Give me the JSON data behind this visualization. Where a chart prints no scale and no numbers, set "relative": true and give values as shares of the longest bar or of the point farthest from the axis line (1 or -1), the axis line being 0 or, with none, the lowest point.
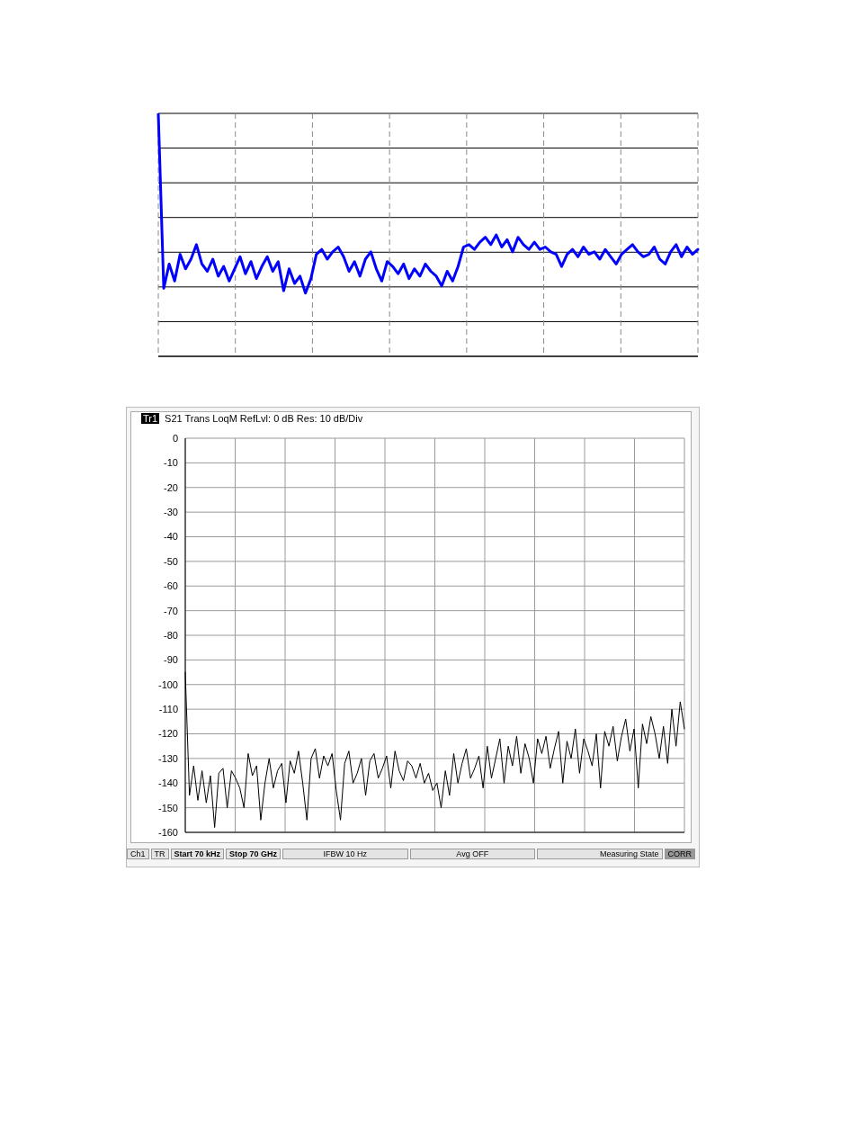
{
  "chart_data": [
    {
      "type": "line",
      "relative": true,
      "grid": true,
      "tick_labels": false,
      "legend": false,
      "categories": [
        null,
        null,
        null,
        null,
        null,
        null,
        null,
        null,
        null,
        null,
        null,
        null,
        null,
        null,
        null,
        null,
        null,
        null,
        null,
        null,
        null,
        null,
        null,
        null,
        null,
        null,
        null,
        null,
        null,
        null,
        null,
        null,
        null,
        null,
        null,
        null,
        null,
        null,
        null,
        null,
        null,
        null,
        null,
        null,
        null,
        null,
        null,
        null,
        null,
        null,
        null,
        null,
        null,
        null,
        null,
        null,
        null,
        null,
        null,
        null,
        null,
        null,
        null,
        null,
        null,
        null,
        null,
        null,
        null,
        null,
        null,
        null,
        null,
        null,
        null,
        null,
        null,
        null,
        null,
        null,
        null,
        null,
        null,
        null,
        null,
        null,
        null,
        null,
        null,
        null,
        null,
        null,
        null,
        null,
        null,
        null,
        null,
        null,
        null,
        null
      ],
      "series": [
        {
          "color": "#0000ff",
          "values": [
            1,
            0.28,
            0.38,
            0.31,
            0.42,
            0.36,
            0.4,
            0.46,
            0.38,
            0.35,
            0.4,
            0.33,
            0.37,
            0.31,
            0.36,
            0.41,
            0.34,
            0.39,
            0.32,
            0.37,
            0.41,
            0.35,
            0.39,
            0.27,
            0.36,
            0.3,
            0.33,
            0.26,
            0.32,
            0.42,
            0.44,
            0.4,
            0.43,
            0.45,
            0.41,
            0.35,
            0.39,
            0.33,
            0.4,
            0.43,
            0.36,
            0.31,
            0.39,
            0.37,
            0.34,
            0.38,
            0.32,
            0.36,
            0.33,
            0.38,
            0.35,
            0.33,
            0.29,
            0.35,
            0.31,
            0.37,
            0.45,
            0.46,
            0.44,
            0.47,
            0.49,
            0.46,
            0.5,
            0.45,
            0.48,
            0.43,
            0.49,
            0.46,
            0.44,
            0.47,
            0.44,
            0.45,
            0.43,
            0.42,
            0.37,
            0.42,
            0.44,
            0.41,
            0.45,
            0.42,
            0.43,
            0.4,
            0.44,
            0.41,
            0.38,
            0.42,
            0.44,
            0.46,
            0.43,
            0.41,
            0.42,
            0.45,
            0.4,
            0.38,
            0.43,
            0.46,
            0.41,
            0.45,
            0.42,
            0.44
          ]
        }
      ]
    },
    {
      "type": "line",
      "title": "S21 Trans LoqM RefLvl: 0  dB Res: 10  dB/Div",
      "grid": true,
      "legend": false,
      "ylim": [
        -160,
        0
      ],
      "yticks": [
        0,
        -10,
        -20,
        -30,
        -40,
        -50,
        -60,
        -70,
        -80,
        -90,
        -100,
        -110,
        -120,
        -130,
        -140,
        -150,
        -160
      ],
      "tick_labels": "y",
      "categories": [
        null,
        null,
        null,
        null,
        null,
        null,
        null,
        null,
        null,
        null,
        null,
        null,
        null,
        null,
        null,
        null,
        null,
        null,
        null,
        null,
        null,
        null,
        null,
        null,
        null,
        null,
        null,
        null,
        null,
        null,
        null,
        null,
        null,
        null,
        null,
        null,
        null,
        null,
        null,
        null,
        null,
        null,
        null,
        null,
        null,
        null,
        null,
        null,
        null,
        null,
        null,
        null,
        null,
        null,
        null,
        null,
        null,
        null,
        null,
        null,
        null,
        null,
        null,
        null,
        null,
        null,
        null,
        null,
        null,
        null,
        null,
        null,
        null,
        null,
        null,
        null,
        null,
        null,
        null,
        null,
        null,
        null,
        null,
        null,
        null,
        null,
        null,
        null,
        null,
        null,
        null,
        null,
        null,
        null,
        null,
        null,
        null,
        null,
        null,
        null,
        null,
        null,
        null,
        null,
        null,
        null,
        null,
        null,
        null,
        null,
        null,
        null,
        null,
        null,
        null,
        null,
        null,
        null,
        null,
        null
      ],
      "annotations": [
        "Tr1",
        "Ch1",
        "TR",
        "Start 70 kHz",
        "Stop 70 GHz",
        "IFBW 10 Hz",
        "Avg OFF",
        "Measuring State",
        "CORR"
      ],
      "series": [
        {
          "color": "#000000",
          "values": [
            -95,
            -145,
            -133,
            -147,
            -135,
            -148,
            -137,
            -158,
            -136,
            -134,
            -150,
            -135,
            -138,
            -142,
            -150,
            -128,
            -137,
            -133,
            -155,
            -140,
            -130,
            -142,
            -135,
            -132,
            -148,
            -131,
            -136,
            -127,
            -140,
            -155,
            -130,
            -126,
            -138,
            -129,
            -133,
            -128,
            -143,
            -155,
            -132,
            -127,
            -140,
            -136,
            -130,
            -145,
            -131,
            -128,
            -138,
            -134,
            -129,
            -142,
            -127,
            -135,
            -139,
            -131,
            -133,
            -138,
            -132,
            -140,
            -136,
            -143,
            -140,
            -150,
            -135,
            -145,
            -128,
            -140,
            -132,
            -126,
            -138,
            -134,
            -129,
            -142,
            -125,
            -138,
            -130,
            -122,
            -140,
            -125,
            -133,
            -121,
            -136,
            -124,
            -130,
            -140,
            -122,
            -128,
            -121,
            -134,
            -126,
            -119,
            -140,
            -123,
            -130,
            -118,
            -136,
            -122,
            -127,
            -133,
            -120,
            -142,
            -119,
            -125,
            -117,
            -131,
            -121,
            -114,
            -127,
            -118,
            -142,
            -116,
            -124,
            -113,
            -120,
            -130,
            -117,
            -132,
            -110,
            -125,
            -107,
            -118
          ]
        }
      ]
    }
  ]
}
